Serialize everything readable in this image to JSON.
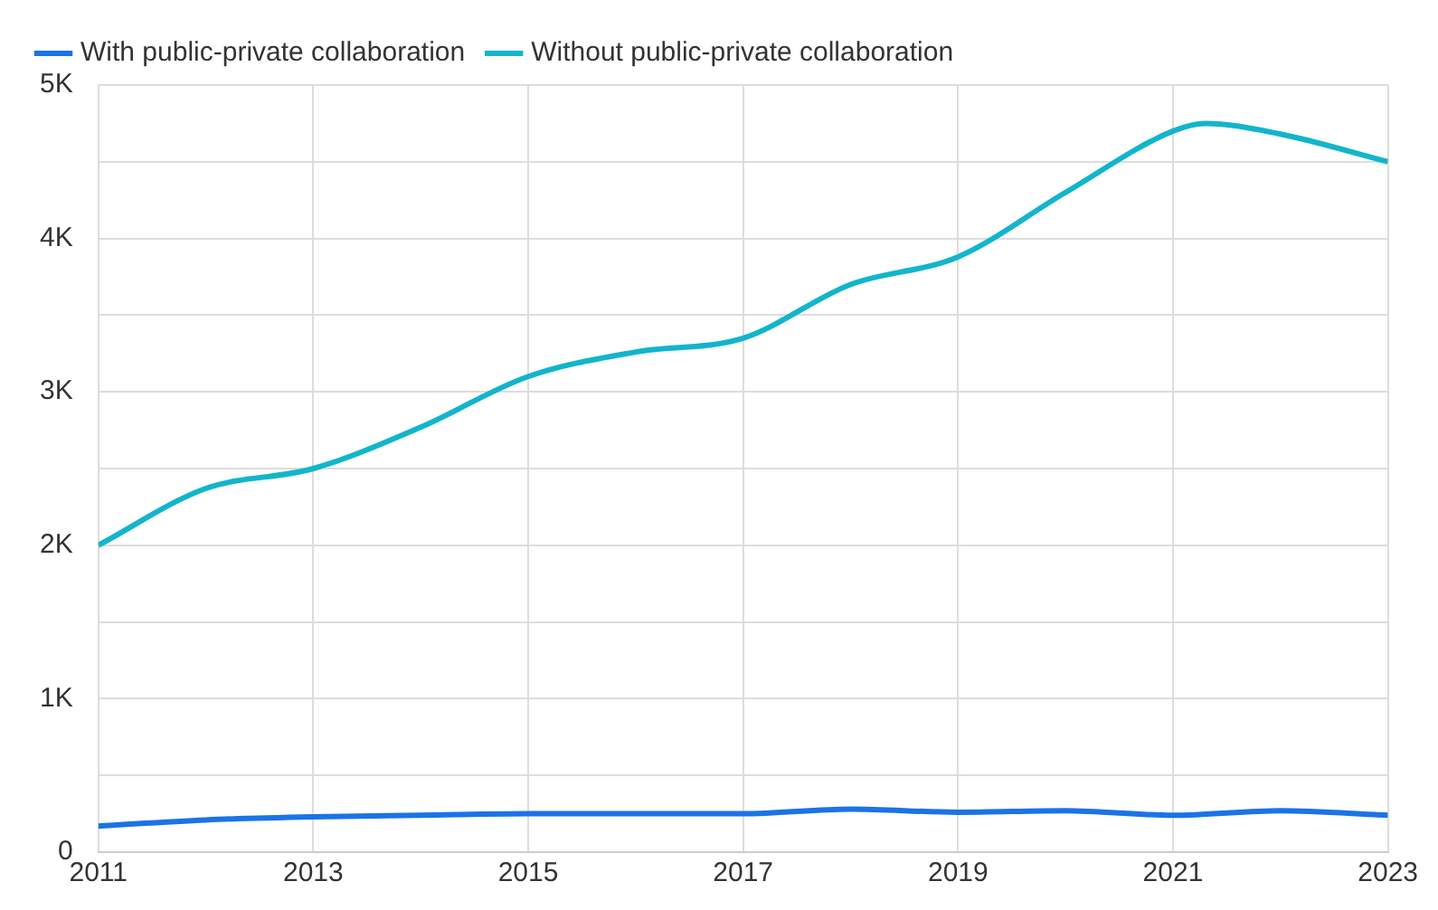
{
  "chart_data": {
    "type": "line",
    "x": [
      2011,
      2012,
      2013,
      2014,
      2015,
      2016,
      2017,
      2018,
      2019,
      2020,
      2021,
      2021.3,
      2022,
      2023
    ],
    "series": [
      {
        "name": "With public-private collaboration",
        "color": "#1a73e8",
        "x": [
          2011,
          2012,
          2013,
          2014,
          2015,
          2016,
          2017,
          2018,
          2019,
          2020,
          2021,
          2022,
          2023
        ],
        "values": [
          170,
          210,
          230,
          240,
          250,
          250,
          250,
          280,
          260,
          270,
          240,
          270,
          240
        ]
      },
      {
        "name": "Without public-private collaboration",
        "color": "#12b5cb",
        "values": [
          2000,
          2370,
          2500,
          2770,
          3100,
          3260,
          3350,
          3700,
          3880,
          4300,
          4700,
          4750,
          4680,
          4500
        ]
      }
    ],
    "xlim": [
      2011,
      2023
    ],
    "xticks": [
      2011,
      2013,
      2015,
      2017,
      2019,
      2021,
      2023
    ],
    "ylim": [
      0,
      5000
    ],
    "yticks": [
      {
        "value": 0,
        "label": "0"
      },
      {
        "value": 500,
        "label": null
      },
      {
        "value": 1000,
        "label": "1K"
      },
      {
        "value": 1500,
        "label": null
      },
      {
        "value": 2000,
        "label": "2K"
      },
      {
        "value": 2500,
        "label": null
      },
      {
        "value": 3000,
        "label": "3K"
      },
      {
        "value": 3500,
        "label": null
      },
      {
        "value": 4000,
        "label": "4K"
      },
      {
        "value": 4500,
        "label": null
      },
      {
        "value": 5000,
        "label": "5K"
      }
    ],
    "grid": true,
    "legend": "top left",
    "marker": "none",
    "line_style": "solid"
  }
}
